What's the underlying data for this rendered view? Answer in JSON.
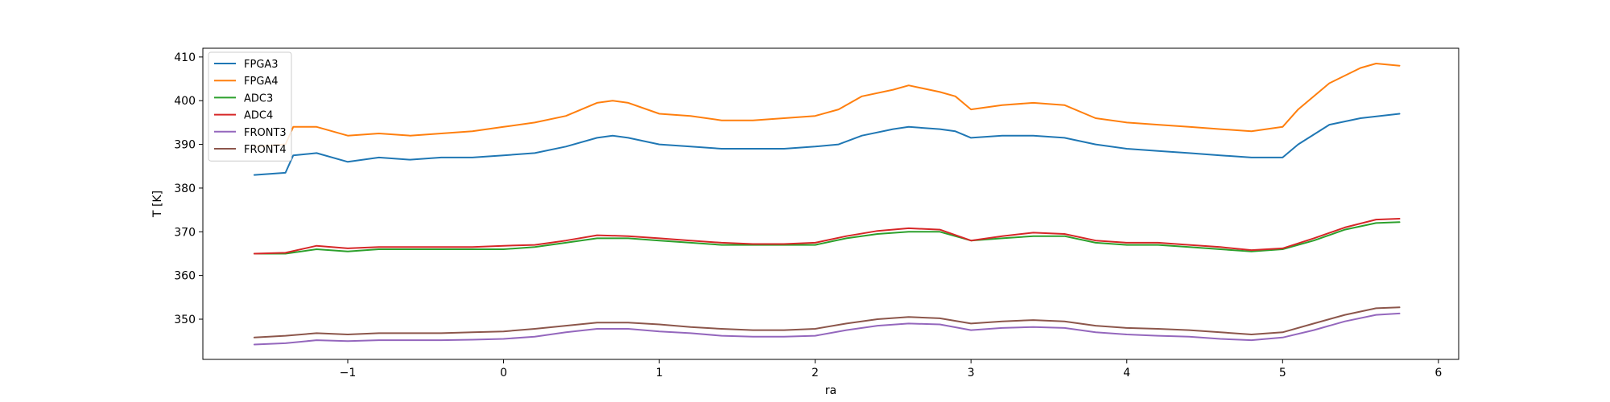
{
  "chart_data": {
    "type": "line",
    "title": "",
    "xlabel": "ra",
    "ylabel": "T [K]",
    "xlim": [
      -1.93,
      6.13
    ],
    "ylim": [
      340.8,
      412.0
    ],
    "xticks": [
      -1,
      0,
      1,
      2,
      3,
      4,
      5,
      6
    ],
    "yticks": [
      350,
      360,
      370,
      380,
      390,
      400,
      410
    ],
    "grid": false,
    "legend_position": "top-left",
    "series": [
      {
        "name": "FPGA3",
        "color": "#1f77b4",
        "x": [
          -1.6,
          -1.4,
          -1.35,
          -1.2,
          -1.0,
          -0.8,
          -0.6,
          -0.4,
          -0.2,
          0.0,
          0.2,
          0.4,
          0.6,
          0.7,
          0.8,
          1.0,
          1.2,
          1.4,
          1.6,
          1.8,
          2.0,
          2.15,
          2.3,
          2.5,
          2.6,
          2.8,
          2.9,
          3.0,
          3.2,
          3.4,
          3.6,
          3.8,
          4.0,
          4.2,
          4.4,
          4.6,
          4.8,
          5.0,
          5.1,
          5.3,
          5.5,
          5.75
        ],
        "y": [
          383.0,
          383.5,
          387.5,
          388.0,
          386.0,
          387.0,
          386.5,
          387.0,
          387.0,
          387.5,
          388.0,
          389.5,
          391.5,
          392.0,
          391.5,
          390.0,
          389.5,
          389.0,
          389.0,
          389.0,
          389.5,
          390.0,
          392.0,
          393.5,
          394.0,
          393.5,
          393.0,
          391.5,
          392.0,
          392.0,
          391.5,
          390.0,
          389.0,
          388.5,
          388.0,
          387.5,
          387.0,
          387.0,
          390.0,
          394.5,
          396.0,
          397.0
        ]
      },
      {
        "name": "FPGA4",
        "color": "#ff7f0e",
        "x": [
          -1.6,
          -1.4,
          -1.35,
          -1.2,
          -1.0,
          -0.8,
          -0.6,
          -0.4,
          -0.2,
          0.0,
          0.2,
          0.4,
          0.6,
          0.7,
          0.8,
          1.0,
          1.2,
          1.4,
          1.6,
          1.8,
          2.0,
          2.15,
          2.3,
          2.5,
          2.6,
          2.8,
          2.9,
          3.0,
          3.2,
          3.4,
          3.6,
          3.8,
          4.0,
          4.2,
          4.4,
          4.6,
          4.8,
          5.0,
          5.1,
          5.3,
          5.5,
          5.6,
          5.75
        ],
        "y": [
          389.5,
          390.0,
          394.0,
          394.0,
          392.0,
          392.5,
          392.0,
          392.5,
          393.0,
          394.0,
          395.0,
          396.5,
          399.5,
          400.0,
          399.5,
          397.0,
          396.5,
          395.5,
          395.5,
          396.0,
          396.5,
          398.0,
          401.0,
          402.5,
          403.5,
          402.0,
          401.0,
          398.0,
          399.0,
          399.5,
          399.0,
          396.0,
          395.0,
          394.5,
          394.0,
          393.5,
          393.0,
          394.0,
          398.0,
          404.0,
          407.5,
          408.5,
          408.0
        ]
      },
      {
        "name": "ADC3",
        "color": "#2ca02c",
        "x": [
          -1.6,
          -1.4,
          -1.2,
          -1.0,
          -0.8,
          -0.6,
          -0.4,
          -0.2,
          0.0,
          0.2,
          0.4,
          0.6,
          0.8,
          1.0,
          1.2,
          1.4,
          1.6,
          1.8,
          2.0,
          2.2,
          2.4,
          2.6,
          2.8,
          3.0,
          3.2,
          3.4,
          3.6,
          3.8,
          4.0,
          4.2,
          4.4,
          4.6,
          4.8,
          5.0,
          5.2,
          5.4,
          5.6,
          5.75
        ],
        "y": [
          365.0,
          365.0,
          366.0,
          365.5,
          366.0,
          366.0,
          366.0,
          366.0,
          366.0,
          366.5,
          367.5,
          368.5,
          368.5,
          368.0,
          367.5,
          367.0,
          367.0,
          367.0,
          367.0,
          368.5,
          369.5,
          370.0,
          370.0,
          368.0,
          368.5,
          369.0,
          369.0,
          367.5,
          367.0,
          367.0,
          366.5,
          366.0,
          365.5,
          366.0,
          368.0,
          370.5,
          372.0,
          372.2
        ]
      },
      {
        "name": "ADC4",
        "color": "#d62728",
        "x": [
          -1.6,
          -1.4,
          -1.2,
          -1.0,
          -0.8,
          -0.6,
          -0.4,
          -0.2,
          0.0,
          0.2,
          0.4,
          0.6,
          0.8,
          1.0,
          1.2,
          1.4,
          1.6,
          1.8,
          2.0,
          2.2,
          2.4,
          2.6,
          2.8,
          3.0,
          3.2,
          3.4,
          3.6,
          3.8,
          4.0,
          4.2,
          4.4,
          4.6,
          4.8,
          5.0,
          5.2,
          5.4,
          5.6,
          5.75
        ],
        "y": [
          365.0,
          365.2,
          366.8,
          366.2,
          366.5,
          366.5,
          366.5,
          366.5,
          366.8,
          367.0,
          368.0,
          369.2,
          369.0,
          368.5,
          368.0,
          367.5,
          367.2,
          367.2,
          367.5,
          369.0,
          370.2,
          370.8,
          370.5,
          368.0,
          369.0,
          369.8,
          369.5,
          368.0,
          367.5,
          367.5,
          367.0,
          366.5,
          365.8,
          366.2,
          368.5,
          371.0,
          372.8,
          373.0
        ]
      },
      {
        "name": "FRONT3",
        "color": "#9467bd",
        "x": [
          -1.6,
          -1.4,
          -1.2,
          -1.0,
          -0.8,
          -0.6,
          -0.4,
          -0.2,
          0.0,
          0.2,
          0.4,
          0.6,
          0.8,
          1.0,
          1.2,
          1.4,
          1.6,
          1.8,
          2.0,
          2.2,
          2.4,
          2.6,
          2.8,
          3.0,
          3.2,
          3.4,
          3.6,
          3.8,
          4.0,
          4.2,
          4.4,
          4.6,
          4.8,
          5.0,
          5.2,
          5.4,
          5.6,
          5.75
        ],
        "y": [
          344.2,
          344.5,
          345.2,
          345.0,
          345.2,
          345.2,
          345.2,
          345.3,
          345.5,
          346.0,
          347.0,
          347.8,
          347.8,
          347.2,
          346.8,
          346.2,
          346.0,
          346.0,
          346.2,
          347.5,
          348.5,
          349.0,
          348.8,
          347.5,
          348.0,
          348.2,
          348.0,
          347.0,
          346.5,
          346.2,
          346.0,
          345.5,
          345.2,
          345.8,
          347.5,
          349.5,
          351.0,
          351.3
        ]
      },
      {
        "name": "FRONT4",
        "color": "#8c564b",
        "x": [
          -1.6,
          -1.4,
          -1.2,
          -1.0,
          -0.8,
          -0.6,
          -0.4,
          -0.2,
          0.0,
          0.2,
          0.4,
          0.6,
          0.8,
          1.0,
          1.2,
          1.4,
          1.6,
          1.8,
          2.0,
          2.2,
          2.4,
          2.6,
          2.8,
          3.0,
          3.2,
          3.4,
          3.6,
          3.8,
          4.0,
          4.2,
          4.4,
          4.6,
          4.8,
          5.0,
          5.2,
          5.4,
          5.6,
          5.75
        ],
        "y": [
          345.8,
          346.2,
          346.8,
          346.5,
          346.8,
          346.8,
          346.8,
          347.0,
          347.2,
          347.8,
          348.5,
          349.2,
          349.2,
          348.8,
          348.2,
          347.8,
          347.5,
          347.5,
          347.8,
          349.0,
          350.0,
          350.5,
          350.2,
          349.0,
          349.5,
          349.8,
          349.5,
          348.5,
          348.0,
          347.8,
          347.5,
          347.0,
          346.5,
          347.0,
          349.0,
          351.0,
          352.5,
          352.7
        ]
      }
    ]
  }
}
